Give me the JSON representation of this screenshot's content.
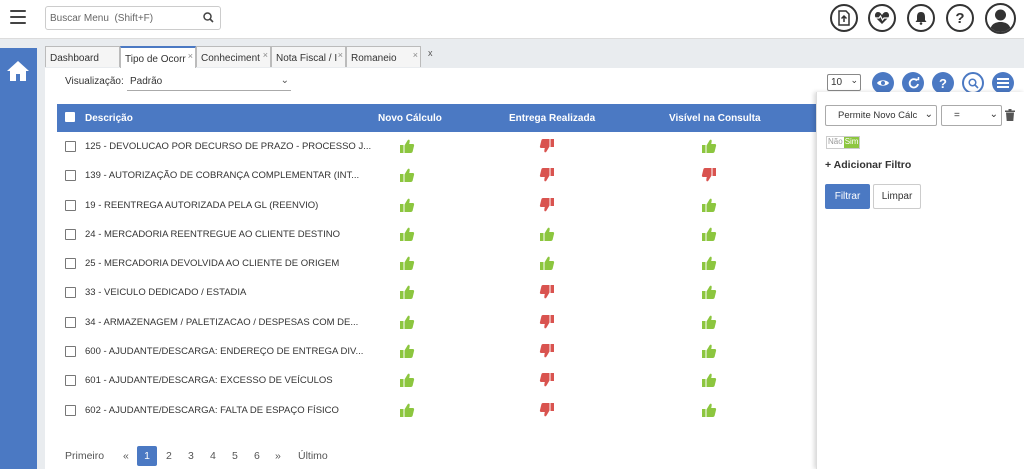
{
  "header": {
    "search_placeholder": "Buscar Menu  (Shift+F)"
  },
  "tabs": [
    {
      "label": "Dashboard",
      "active": false
    },
    {
      "label": "Tipo de Ocorr",
      "active": true
    },
    {
      "label": "Conheciment",
      "active": false
    },
    {
      "label": "Nota Fiscal / I",
      "active": false
    },
    {
      "label": "Romaneio",
      "active": false
    }
  ],
  "toolbar": {
    "visualizacao_label": "Visualização:",
    "visualizacao_value": "Padrão",
    "page_size": "10"
  },
  "table": {
    "columns": [
      "Descrição",
      "Novo Cálculo",
      "Entrega Realizada",
      "Visível na Consulta"
    ],
    "rows": [
      {
        "desc": "125 - DEVOLUCAO POR DECURSO DE PRAZO - PROCESSO J...",
        "novo_calculo": "up",
        "entrega_realizada": "down",
        "visivel": "up"
      },
      {
        "desc": "139 - AUTORIZAÇÃO DE COBRANÇA COMPLEMENTAR (INT...",
        "novo_calculo": "up",
        "entrega_realizada": "down",
        "visivel": "down"
      },
      {
        "desc": "19 - REENTREGA AUTORIZADA PELA GL (REENVIO)",
        "novo_calculo": "up",
        "entrega_realizada": "down",
        "visivel": "up"
      },
      {
        "desc": "24 - MERCADORIA REENTREGUE AO CLIENTE DESTINO",
        "novo_calculo": "up",
        "entrega_realizada": "up",
        "visivel": "up"
      },
      {
        "desc": "25 - MERCADORIA DEVOLVIDA AO CLIENTE DE ORIGEM",
        "novo_calculo": "up",
        "entrega_realizada": "up",
        "visivel": "up"
      },
      {
        "desc": "33 - VEICULO DEDICADO / ESTADIA",
        "novo_calculo": "up",
        "entrega_realizada": "down",
        "visivel": "up"
      },
      {
        "desc": "34 - ARMAZENAGEM / PALETIZACAO / DESPESAS COM DE...",
        "novo_calculo": "up",
        "entrega_realizada": "down",
        "visivel": "up"
      },
      {
        "desc": "600 - AJUDANTE/DESCARGA: ENDEREÇO DE ENTREGA DIV...",
        "novo_calculo": "up",
        "entrega_realizada": "down",
        "visivel": "up"
      },
      {
        "desc": "601 - AJUDANTE/DESCARGA: EXCESSO DE VEÍCULOS",
        "novo_calculo": "up",
        "entrega_realizada": "down",
        "visivel": "up"
      },
      {
        "desc": "602 - AJUDANTE/DESCARGA: FALTA DE ESPAÇO FÍSICO",
        "novo_calculo": "up",
        "entrega_realizada": "down",
        "visivel": "up"
      }
    ]
  },
  "pagination": {
    "first": "Primeiro",
    "prev": "«",
    "pages": [
      "1",
      "2",
      "3",
      "4",
      "5",
      "6"
    ],
    "current": "1",
    "next": "»",
    "last": "Último"
  },
  "filter": {
    "field": "Permite Novo Cálc",
    "operator": "=",
    "toggle_off": "Não",
    "toggle_on": "Sim",
    "add_filter": "+ Adicionar Filtro",
    "apply": "Filtrar",
    "clear": "Limpar"
  },
  "colors": {
    "primary": "#4b79c3",
    "thumb_up": "#8cc63f",
    "thumb_down": "#d9534f"
  }
}
